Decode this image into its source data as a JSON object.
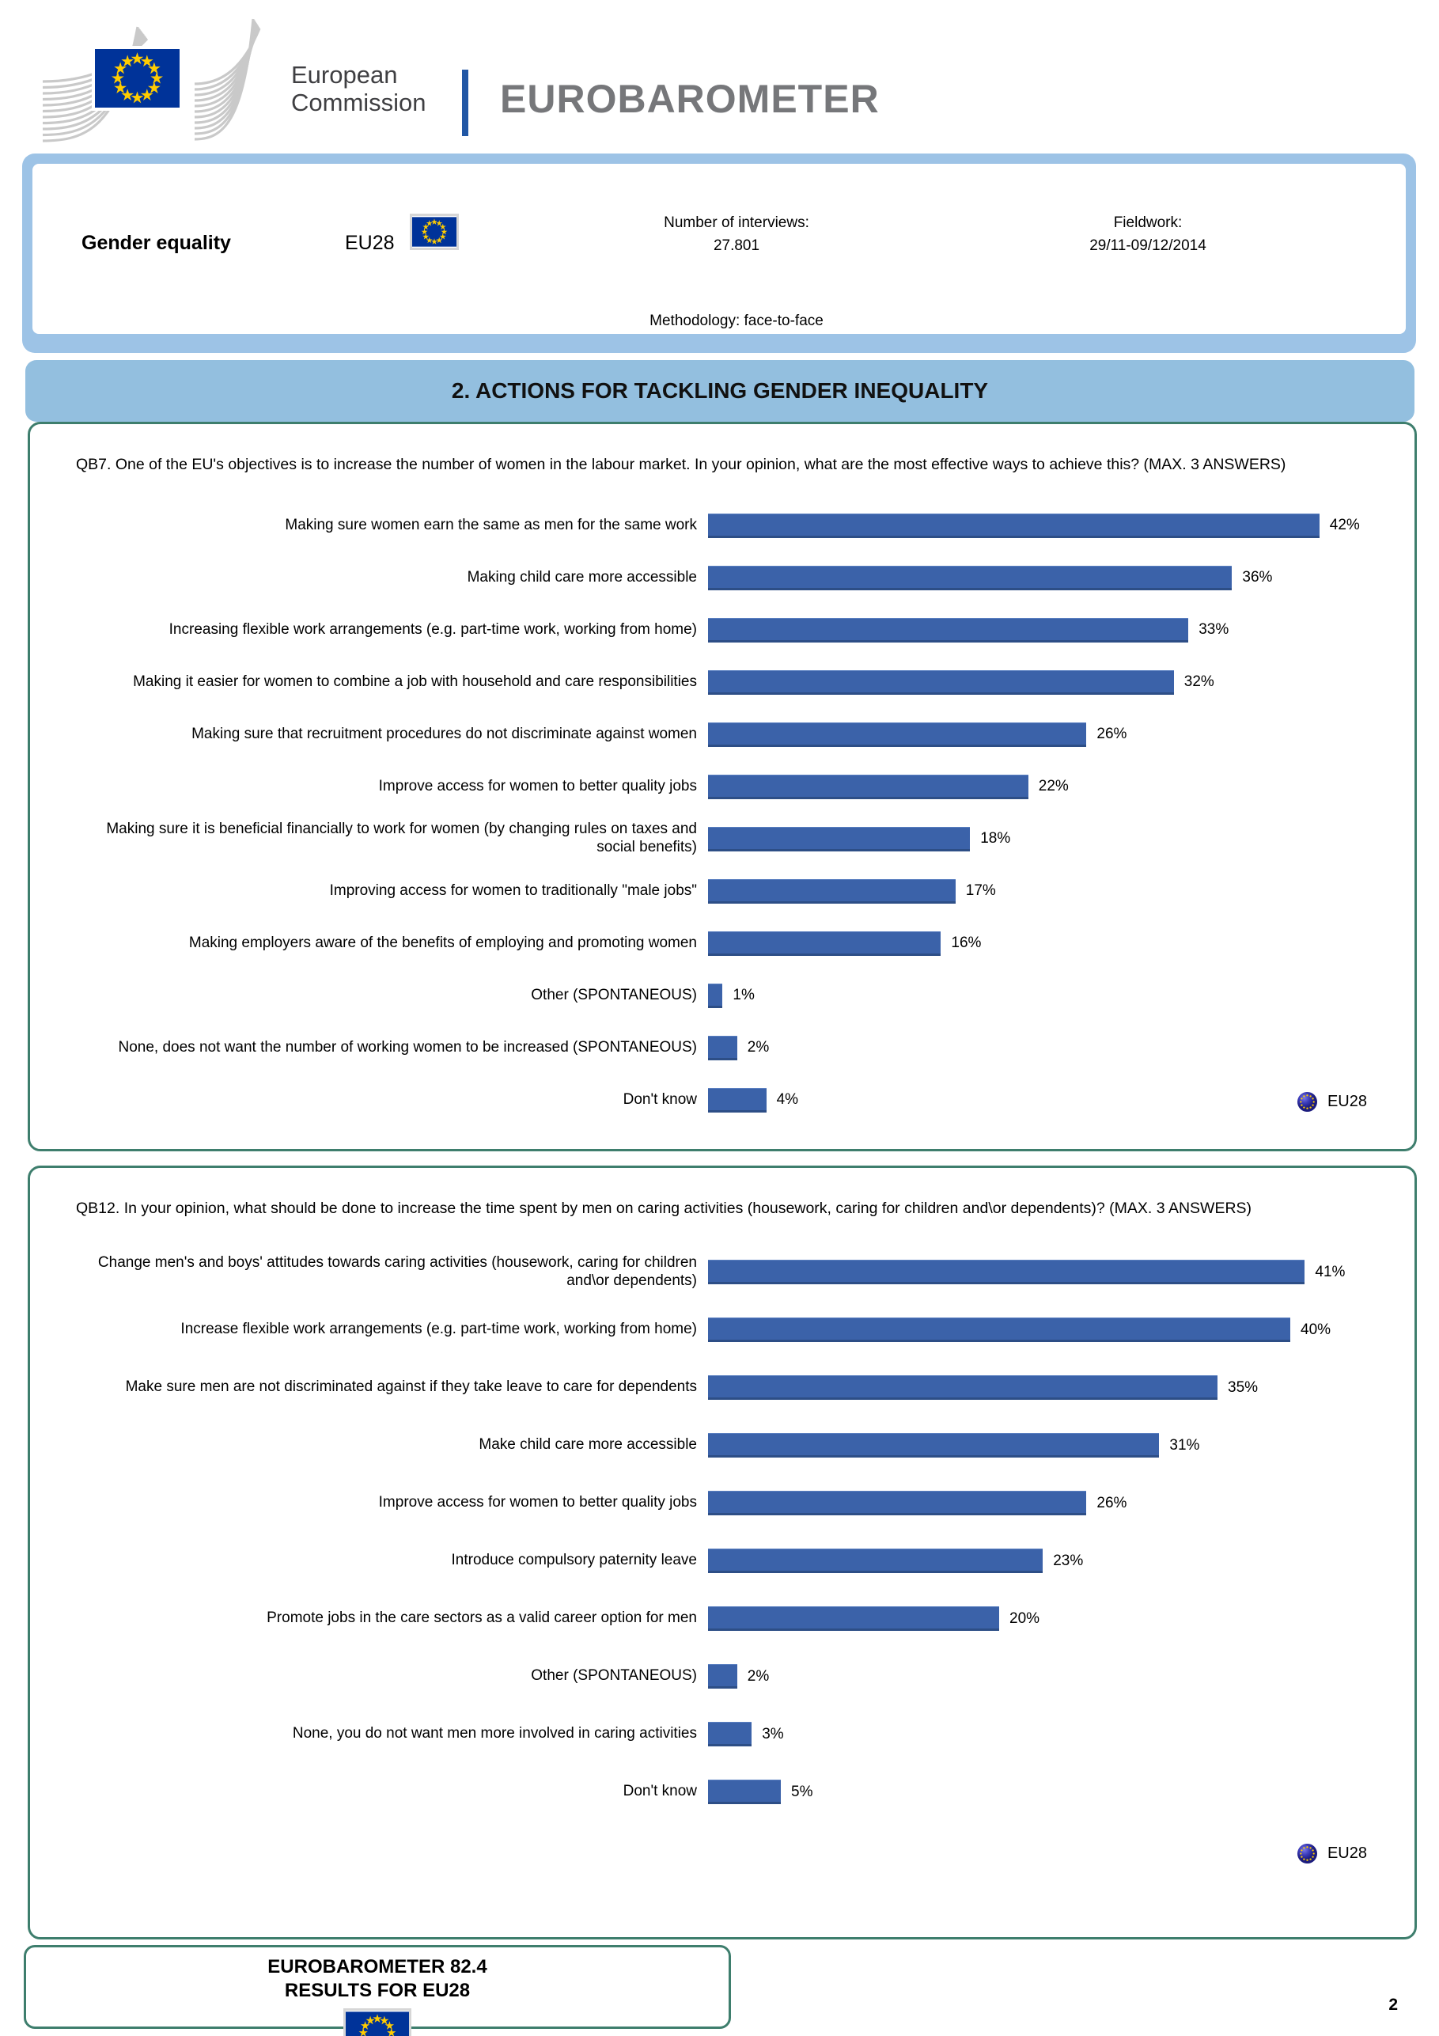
{
  "header": {
    "institution_line1": "European",
    "institution_line2": "Commission",
    "brand": "EUROBAROMETER"
  },
  "info_box": {
    "topic": "Gender equality",
    "region": "EU28",
    "interviews_label": "Number of interviews:",
    "interviews_value": "27.801",
    "fieldwork_label": "Fieldwork:",
    "fieldwork_value": "29/11-09/12/2014",
    "methodology": "Methodology: face-to-face"
  },
  "section_title": "2. ACTIONS FOR TACKLING GENDER INEQUALITY",
  "chart_data": [
    {
      "type": "bar",
      "orientation": "horizontal",
      "title": "QB7. One of the EU's objectives is to increase the number of women in the labour market. In your opinion, what are the most effective ways to achieve this? (MAX. 3 ANSWERS)",
      "categories": [
        "Making sure women earn the same as men for the same work",
        "Making child care more accessible",
        "Increasing flexible work arrangements (e.g. part-time work, working from home)",
        "Making it easier for women to combine a job with household and care responsibilities",
        "Making sure that recruitment procedures do not discriminate against women",
        "Improve access for women to better quality jobs",
        "Making sure it is beneficial financially to work for women (by changing rules on taxes and social benefits)",
        "Improving access for women to traditionally \"male jobs\"",
        "Making employers aware of the benefits of employing and promoting women",
        "Other (SPONTANEOUS)",
        "None, does not want the number of working women to be increased (SPONTANEOUS)",
        "Don't know"
      ],
      "values": [
        42,
        36,
        33,
        32,
        26,
        22,
        18,
        17,
        16,
        1,
        2,
        4
      ],
      "value_suffix": "%",
      "xlim": [
        0,
        45
      ],
      "grid": false,
      "legend": "EU28",
      "legend_position": "bottom-right"
    },
    {
      "type": "bar",
      "orientation": "horizontal",
      "title": "QB12. In your opinion, what should be done to increase the time spent by men on caring activities (housework, caring for children and\\or dependents)? (MAX. 3 ANSWERS)",
      "categories": [
        "Change men's and boys' attitudes towards caring activities (housework, caring for children and\\or dependents)",
        "Increase flexible work arrangements (e.g. part-time work, working from home)",
        "Make sure men are not discriminated against if they take leave to care for dependents",
        "Make child care more accessible",
        "Improve access for women to better quality jobs",
        "Introduce compulsory paternity leave",
        "Promote jobs in the care sectors as a valid career option for men",
        "Other (SPONTANEOUS)",
        "None, you do not want men more involved in caring activities",
        "Don't know"
      ],
      "values": [
        41,
        40,
        35,
        31,
        26,
        23,
        20,
        2,
        3,
        5
      ],
      "value_suffix": "%",
      "xlim": [
        0,
        45
      ],
      "grid": false,
      "legend": "EU28",
      "legend_position": "bottom-right"
    }
  ],
  "footer": {
    "line1": "EUROBAROMETER 82.4",
    "line2": "RESULTS FOR EU28",
    "page_number": "2"
  },
  "colors": {
    "bar": "#3b62a9",
    "bar_edge": "#2d4e86",
    "section_band": "#93bfdf",
    "info_border": "#9dc3e6",
    "box_border": "#3e7e6d",
    "eu_flag_blue": "#003399",
    "eu_flag_yellow": "#ffcc00",
    "brand_gray": "#76777a",
    "divider_blue": "#2157a5"
  }
}
